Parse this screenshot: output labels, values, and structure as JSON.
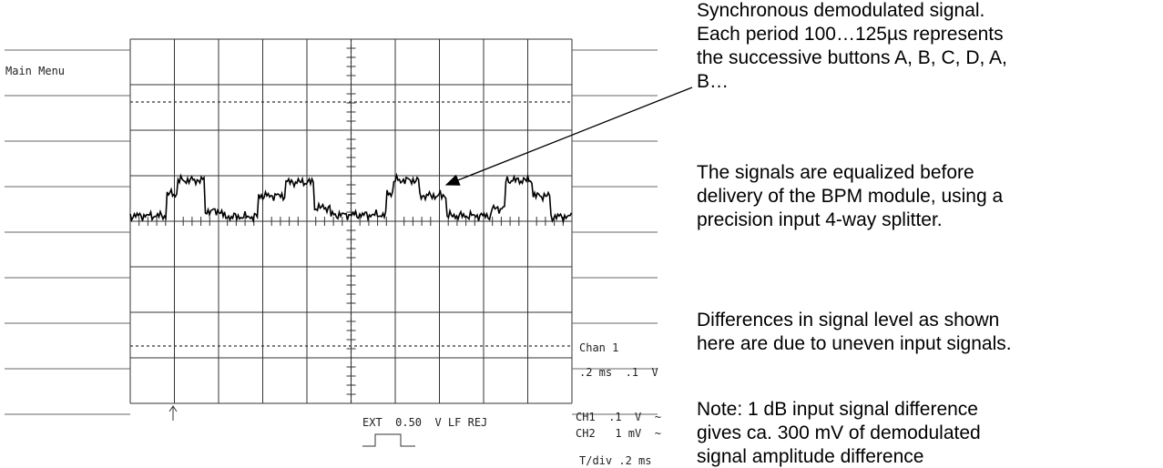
{
  "scope": {
    "menu": "Main Menu",
    "channel_label": "Chan 1",
    "channel_scale": ".2 ms  .1  V",
    "trigger": "EXT  0.50  V LF REJ",
    "ch1": "CH1  .1  V  ~",
    "ch2": "CH2   1 mV  ~",
    "timebase": "T/div .2 ms"
  },
  "notes": [
    [
      "Synchronous demodulated signal.",
      "Each period 100…125µs represents",
      "the successive buttons A, B, C, D, A,",
      "B…"
    ],
    [
      "The signals are equalized before",
      "delivery of the BPM module, using a",
      "precision input 4-way splitter."
    ],
    [
      "Differences in signal level as shown",
      "here are due to uneven input signals."
    ],
    [
      "Note: 1 dB input signal difference",
      "gives ca. 300 mV of demodulated",
      "signal amplitude difference"
    ]
  ]
}
